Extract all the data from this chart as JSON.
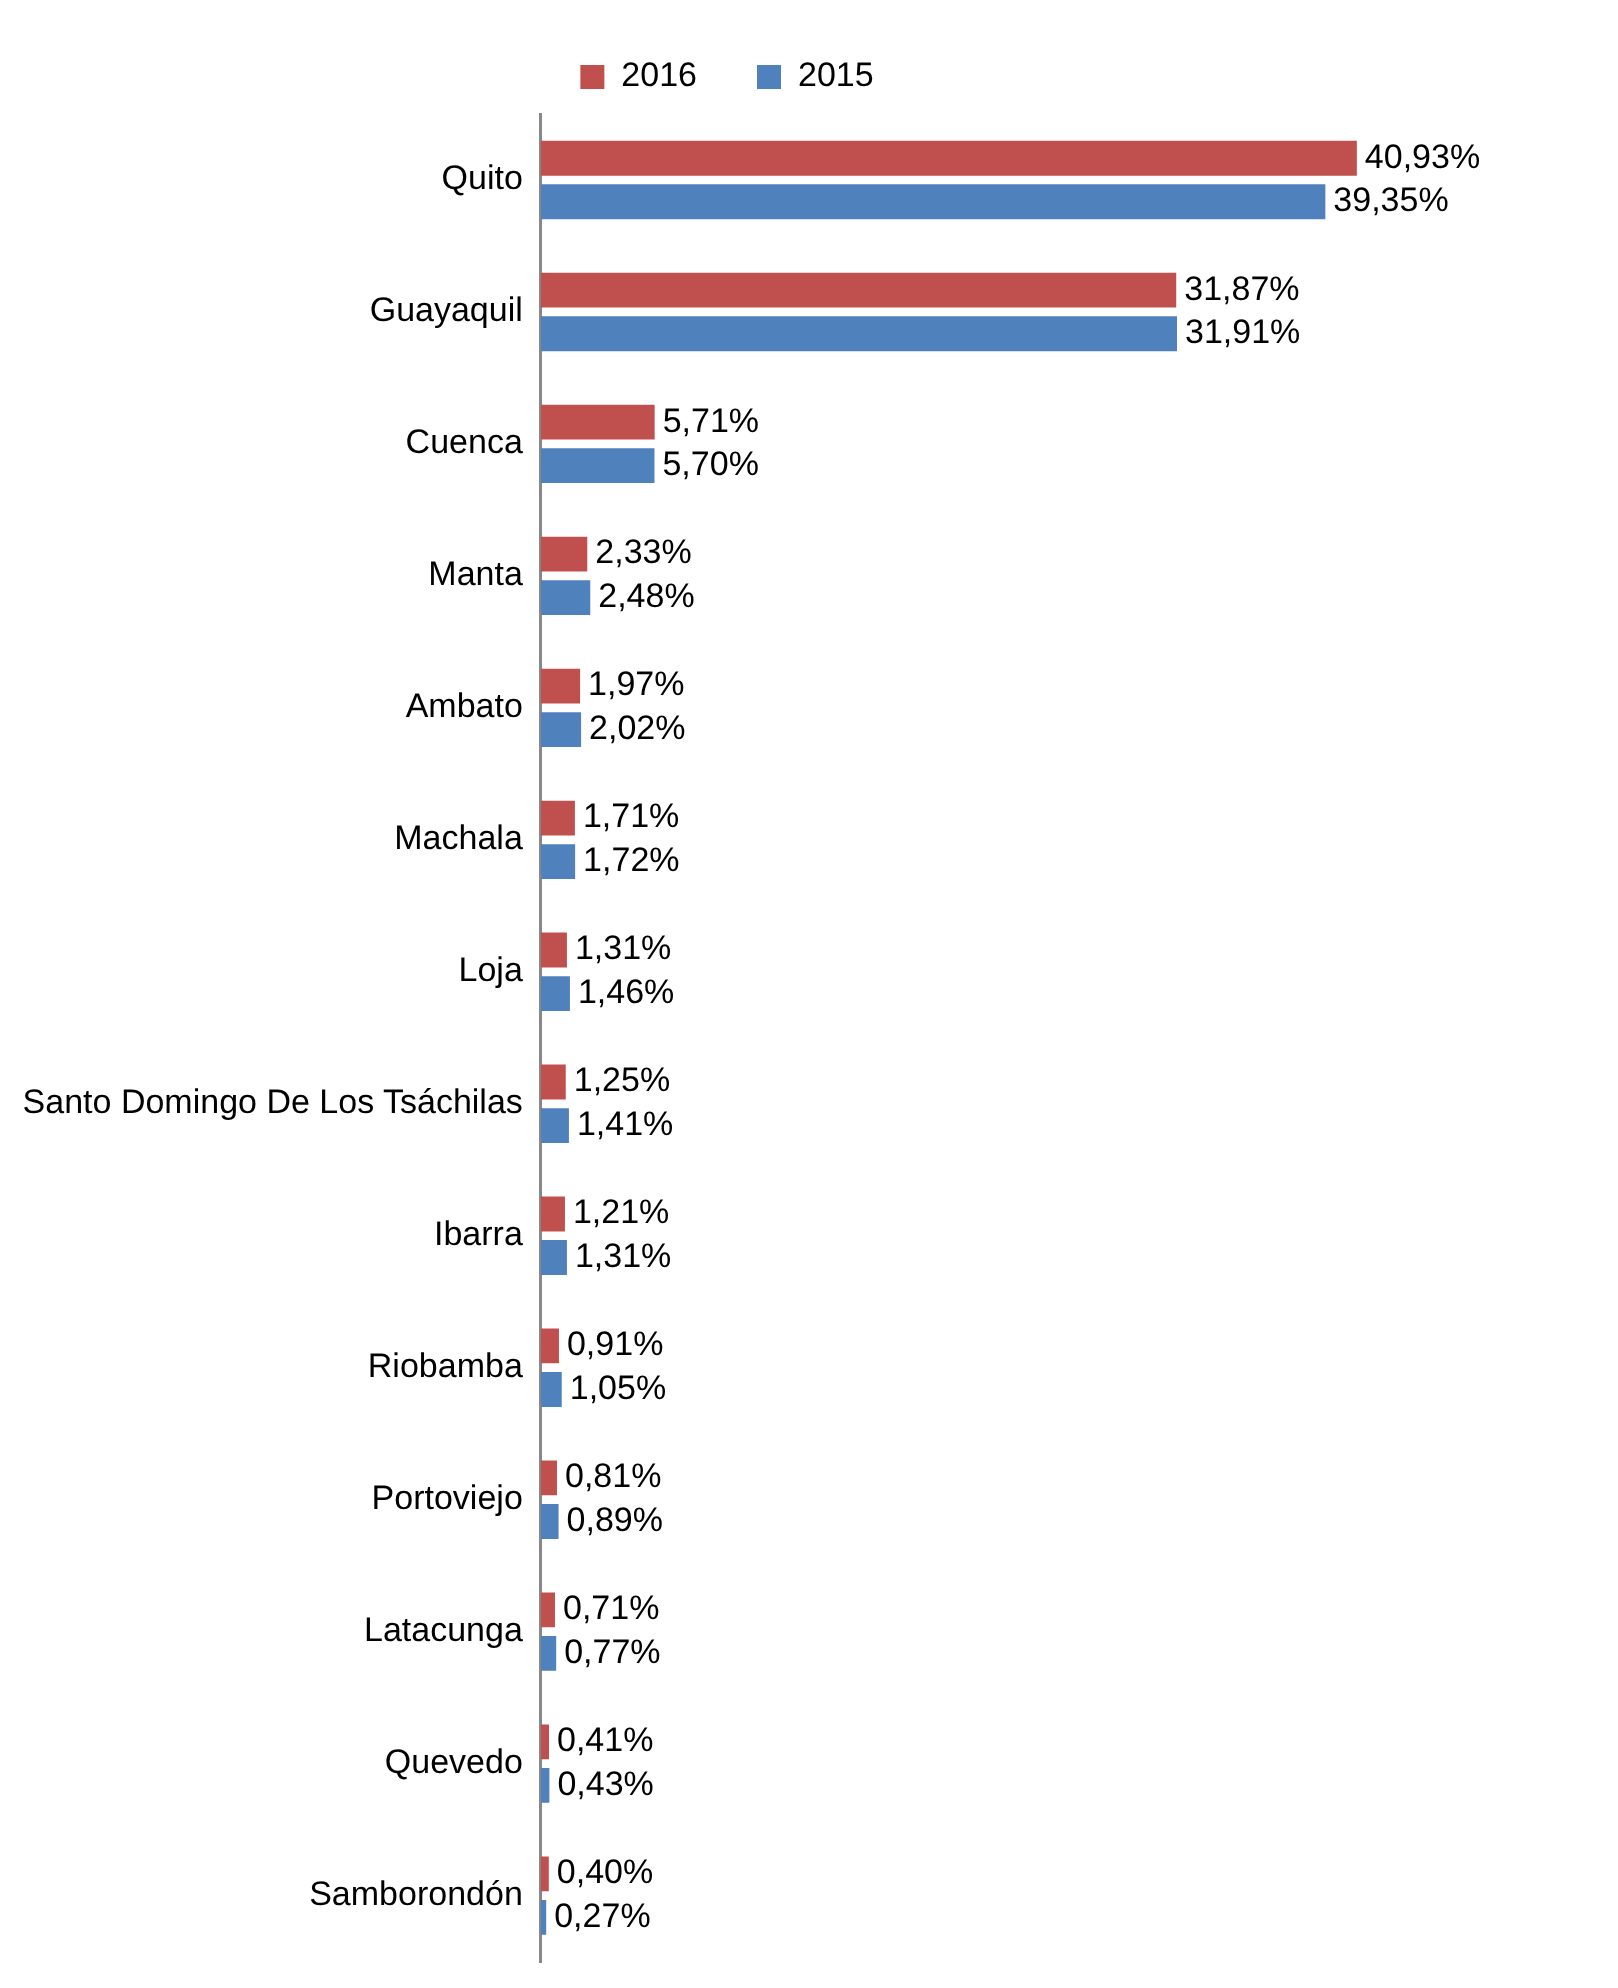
{
  "chart_data": {
    "type": "bar",
    "orientation": "horizontal",
    "legend": "top",
    "grid": false,
    "tick_labels": "y",
    "categories": [
      "Quito",
      "Guayaquil",
      "Cuenca",
      "Manta",
      "Ambato",
      "Machala",
      "Loja",
      "Santo Domingo De Los Tsáchilas",
      "Ibarra",
      "Riobamba",
      "Portoviejo",
      "Latacunga",
      "Quevedo",
      "Samborondón"
    ],
    "series": [
      {
        "name": "2016",
        "color": "#c0504d",
        "values": [
          40.93,
          31.87,
          5.71,
          2.33,
          1.97,
          1.71,
          1.31,
          1.25,
          1.21,
          0.91,
          0.81,
          0.71,
          0.41,
          0.4
        ],
        "value_labels": [
          "40,93%",
          "31,87%",
          "5,71%",
          "2,33%",
          "1,97%",
          "1,71%",
          "1,31%",
          "1,25%",
          "1,21%",
          "0,91%",
          "0,81%",
          "0,71%",
          "0,41%",
          "0,40%"
        ]
      },
      {
        "name": "2015",
        "color": "#4f81bd",
        "values": [
          39.35,
          31.91,
          5.7,
          2.48,
          2.02,
          1.72,
          1.46,
          1.41,
          1.31,
          1.05,
          0.89,
          0.77,
          0.43,
          0.27
        ],
        "value_labels": [
          "39,35%",
          "31,91%",
          "5,70%",
          "2,48%",
          "2,02%",
          "1,72%",
          "1,46%",
          "1,41%",
          "1,31%",
          "1,05%",
          "0,89%",
          "0,77%",
          "0,43%",
          "0,27%"
        ]
      }
    ]
  }
}
